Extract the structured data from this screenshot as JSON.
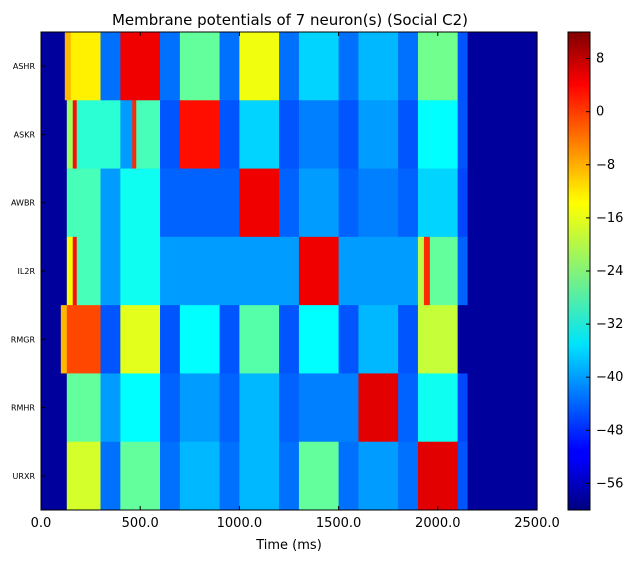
{
  "chart_data": {
    "type": "heatmap",
    "title": "Membrane potentials of 7 neuron(s) (Social C2)",
    "xlabel": "Time (ms)",
    "ylabel": "",
    "xlim": [
      0,
      2500
    ],
    "x_ticks": [
      0,
      500,
      1000,
      1500,
      2000,
      2500
    ],
    "x_tick_labels": [
      "0.0",
      "500.0",
      "1000.0",
      "1500.0",
      "2000.0",
      "2500.0"
    ],
    "rows": [
      "ASHR",
      "ASKR",
      "AWBR",
      "IL2R",
      "RMGR",
      "RMHR",
      "URXR"
    ],
    "colorbar": {
      "colormap": "jet",
      "range": [
        -60,
        12
      ],
      "ticks": [
        8,
        0,
        -8,
        -16,
        -24,
        -32,
        -40,
        -48,
        -56
      ],
      "tick_labels": [
        "8",
        "0",
        "−8",
        "−16",
        "−24",
        "−32",
        "−40",
        "−48",
        "−56"
      ]
    },
    "series": [
      {
        "segments": [
          [
            0,
            120,
            -58
          ],
          [
            120,
            150,
            -10
          ],
          [
            150,
            300,
            -14
          ],
          [
            300,
            400,
            -43
          ],
          [
            400,
            600,
            4
          ],
          [
            600,
            700,
            -43
          ],
          [
            700,
            900,
            -26
          ],
          [
            900,
            1000,
            -43
          ],
          [
            1000,
            1200,
            -16
          ],
          [
            1200,
            1300,
            -43
          ],
          [
            1300,
            1500,
            -36
          ],
          [
            1500,
            1600,
            -43
          ],
          [
            1600,
            1800,
            -38
          ],
          [
            1800,
            1900,
            -43
          ],
          [
            1900,
            2100,
            -25
          ],
          [
            2100,
            2150,
            -45
          ],
          [
            2150,
            2500,
            -58
          ]
        ]
      },
      {
        "segments": [
          [
            0,
            130,
            -58
          ],
          [
            130,
            160,
            -22
          ],
          [
            160,
            180,
            2
          ],
          [
            180,
            400,
            -30
          ],
          [
            400,
            460,
            -40
          ],
          [
            460,
            480,
            0
          ],
          [
            480,
            600,
            -28
          ],
          [
            600,
            700,
            -45
          ],
          [
            700,
            900,
            2
          ],
          [
            900,
            1000,
            -45
          ],
          [
            1000,
            1200,
            -36
          ],
          [
            1200,
            1300,
            -45
          ],
          [
            1300,
            1500,
            -42
          ],
          [
            1500,
            1600,
            -45
          ],
          [
            1600,
            1800,
            -40
          ],
          [
            1800,
            1900,
            -45
          ],
          [
            1900,
            2100,
            -33
          ],
          [
            2100,
            2150,
            -45
          ],
          [
            2150,
            2500,
            -58
          ]
        ]
      },
      {
        "segments": [
          [
            0,
            130,
            -58
          ],
          [
            130,
            300,
            -28
          ],
          [
            300,
            400,
            -40
          ],
          [
            400,
            600,
            -32
          ],
          [
            600,
            1000,
            -44
          ],
          [
            1000,
            1200,
            4
          ],
          [
            1200,
            1300,
            -44
          ],
          [
            1300,
            1500,
            -40
          ],
          [
            1500,
            1600,
            -44
          ],
          [
            1600,
            1800,
            -42
          ],
          [
            1800,
            1900,
            -44
          ],
          [
            1900,
            2100,
            -36
          ],
          [
            2100,
            2150,
            -46
          ],
          [
            2150,
            2500,
            -58
          ]
        ]
      },
      {
        "segments": [
          [
            0,
            130,
            -58
          ],
          [
            130,
            160,
            -16
          ],
          [
            160,
            180,
            2
          ],
          [
            180,
            300,
            -28
          ],
          [
            300,
            400,
            -40
          ],
          [
            400,
            600,
            -32
          ],
          [
            600,
            700,
            -40
          ],
          [
            700,
            900,
            -40
          ],
          [
            900,
            1000,
            -40
          ],
          [
            1000,
            1200,
            -40
          ],
          [
            1200,
            1300,
            -40
          ],
          [
            1300,
            1500,
            4
          ],
          [
            1500,
            1600,
            -40
          ],
          [
            1600,
            1800,
            -40
          ],
          [
            1800,
            1900,
            -40
          ],
          [
            1900,
            1930,
            -20
          ],
          [
            1930,
            1960,
            0
          ],
          [
            1960,
            2100,
            -26
          ],
          [
            2100,
            2150,
            -44
          ],
          [
            2150,
            2500,
            -58
          ]
        ]
      },
      {
        "segments": [
          [
            0,
            100,
            -58
          ],
          [
            100,
            130,
            -10
          ],
          [
            130,
            300,
            -2
          ],
          [
            300,
            400,
            -45
          ],
          [
            400,
            600,
            -17
          ],
          [
            600,
            700,
            -45
          ],
          [
            700,
            900,
            -33
          ],
          [
            900,
            1000,
            -45
          ],
          [
            1000,
            1200,
            -27
          ],
          [
            1200,
            1300,
            -45
          ],
          [
            1300,
            1500,
            -33
          ],
          [
            1500,
            1600,
            -45
          ],
          [
            1600,
            1800,
            -38
          ],
          [
            1800,
            1900,
            -45
          ],
          [
            1900,
            2100,
            -19
          ],
          [
            2100,
            2500,
            -58
          ]
        ]
      },
      {
        "segments": [
          [
            0,
            130,
            -58
          ],
          [
            130,
            300,
            -26
          ],
          [
            300,
            400,
            -40
          ],
          [
            400,
            600,
            -33
          ],
          [
            600,
            700,
            -44
          ],
          [
            700,
            900,
            -40
          ],
          [
            900,
            1000,
            -44
          ],
          [
            1000,
            1200,
            -38
          ],
          [
            1200,
            1300,
            -44
          ],
          [
            1300,
            1600,
            -42
          ],
          [
            1600,
            1800,
            5
          ],
          [
            1800,
            1900,
            -44
          ],
          [
            1900,
            2100,
            -32
          ],
          [
            2100,
            2150,
            -46
          ],
          [
            2150,
            2500,
            -58
          ]
        ]
      },
      {
        "segments": [
          [
            0,
            130,
            -58
          ],
          [
            130,
            300,
            -18
          ],
          [
            300,
            400,
            -43
          ],
          [
            400,
            600,
            -26
          ],
          [
            600,
            700,
            -43
          ],
          [
            700,
            900,
            -38
          ],
          [
            900,
            1000,
            -43
          ],
          [
            1000,
            1200,
            -38
          ],
          [
            1200,
            1300,
            -43
          ],
          [
            1300,
            1500,
            -26
          ],
          [
            1500,
            1600,
            -43
          ],
          [
            1600,
            1800,
            -40
          ],
          [
            1800,
            1900,
            -43
          ],
          [
            1900,
            2100,
            5
          ],
          [
            2100,
            2150,
            -45
          ],
          [
            2150,
            2500,
            -58
          ]
        ]
      }
    ]
  }
}
